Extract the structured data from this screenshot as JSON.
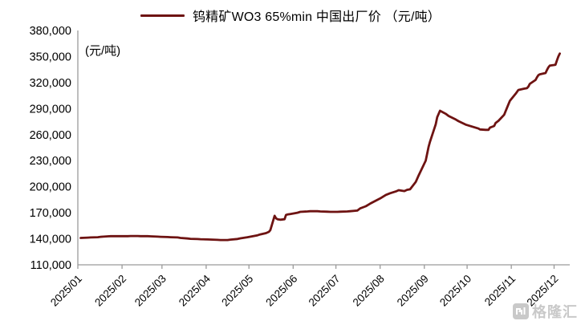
{
  "legend": {
    "label": "钨精矿WO3 65%min 中国出厂价 （元/吨）"
  },
  "unit_label": "(元/吨)",
  "watermark": {
    "text": "格隆汇"
  },
  "colors": {
    "line": "#6e1312",
    "axis": "#9a9a9a",
    "tick_text": "#000000",
    "watermark": "#c9c9c9"
  },
  "chart_data": {
    "type": "line",
    "title": "钨精矿WO3 65%min 中国出厂价 （元/吨）",
    "xlabel": "",
    "ylabel": "(元/吨)",
    "ylim": [
      110000,
      380000
    ],
    "ytick_step": 30000,
    "yticks": [
      110000,
      140000,
      170000,
      200000,
      230000,
      260000,
      290000,
      320000,
      350000,
      380000
    ],
    "xticks": [
      "2025/01",
      "2025/02",
      "2025/03",
      "2025/04",
      "2025/05",
      "2025/06",
      "2025/07",
      "2025/08",
      "2025/09",
      "2025/10",
      "2025/11",
      "2025/12"
    ],
    "grid": false,
    "legend_position": "top",
    "series": [
      {
        "name": "钨精矿WO3 65%min 中国出厂价",
        "unit": "元/吨",
        "points": [
          [
            "2025/01/03",
            141000
          ],
          [
            "2025/01/08",
            141300
          ],
          [
            "2025/01/10",
            141500
          ],
          [
            "2025/01/15",
            141800
          ],
          [
            "2025/01/17",
            142300
          ],
          [
            "2025/01/22",
            142800
          ],
          [
            "2025/01/24",
            143000
          ],
          [
            "2025/02/05",
            143000
          ],
          [
            "2025/02/07",
            143200
          ],
          [
            "2025/02/12",
            143200
          ],
          [
            "2025/02/14",
            143000
          ],
          [
            "2025/02/19",
            143000
          ],
          [
            "2025/02/21",
            142800
          ],
          [
            "2025/02/26",
            142500
          ],
          [
            "2025/02/28",
            142300
          ],
          [
            "2025/03/05",
            142000
          ],
          [
            "2025/03/07",
            141800
          ],
          [
            "2025/03/12",
            141500
          ],
          [
            "2025/03/14",
            141000
          ],
          [
            "2025/03/19",
            140300
          ],
          [
            "2025/03/21",
            140000
          ],
          [
            "2025/03/26",
            139700
          ],
          [
            "2025/03/28",
            139500
          ],
          [
            "2025/04/02",
            139200
          ],
          [
            "2025/04/09",
            138800
          ],
          [
            "2025/04/11",
            138600
          ],
          [
            "2025/04/16",
            138600
          ],
          [
            "2025/04/18",
            139000
          ],
          [
            "2025/04/23",
            139800
          ],
          [
            "2025/04/25",
            140500
          ],
          [
            "2025/04/30",
            141800
          ],
          [
            "2025/05/07",
            144000
          ],
          [
            "2025/05/09",
            145000
          ],
          [
            "2025/05/13",
            146500
          ],
          [
            "2025/05/15",
            148000
          ],
          [
            "2025/05/16",
            150000
          ],
          [
            "2025/05/19",
            166500
          ],
          [
            "2025/05/20",
            163500
          ],
          [
            "2025/05/21",
            162500
          ],
          [
            "2025/05/23",
            162000
          ],
          [
            "2025/05/26",
            162500
          ],
          [
            "2025/05/27",
            167500
          ],
          [
            "2025/05/28",
            168000
          ],
          [
            "2025/05/30",
            168500
          ],
          [
            "2025/06/04",
            170000
          ],
          [
            "2025/06/06",
            171000
          ],
          [
            "2025/06/11",
            171500
          ],
          [
            "2025/06/13",
            171800
          ],
          [
            "2025/06/18",
            171800
          ],
          [
            "2025/06/20",
            171500
          ],
          [
            "2025/06/25",
            171200
          ],
          [
            "2025/06/27",
            171000
          ],
          [
            "2025/07/02",
            171000
          ],
          [
            "2025/07/04",
            171200
          ],
          [
            "2025/07/09",
            171500
          ],
          [
            "2025/07/11",
            171800
          ],
          [
            "2025/07/16",
            172500
          ],
          [
            "2025/07/18",
            175000
          ],
          [
            "2025/07/22",
            177500
          ],
          [
            "2025/07/25",
            180500
          ],
          [
            "2025/07/29",
            184000
          ],
          [
            "2025/08/01",
            186500
          ],
          [
            "2025/08/05",
            190500
          ],
          [
            "2025/08/08",
            192500
          ],
          [
            "2025/08/12",
            194500
          ],
          [
            "2025/08/14",
            196000
          ],
          [
            "2025/08/18",
            195000
          ],
          [
            "2025/08/20",
            196500
          ],
          [
            "2025/08/22",
            197000
          ],
          [
            "2025/08/26",
            205500
          ],
          [
            "2025/08/28",
            213000
          ],
          [
            "2025/09/02",
            230000
          ],
          [
            "2025/09/04",
            246000
          ],
          [
            "2025/09/05",
            252000
          ],
          [
            "2025/09/09",
            272000
          ],
          [
            "2025/09/10",
            280000
          ],
          [
            "2025/09/12",
            287500
          ],
          [
            "2025/09/16",
            284000
          ],
          [
            "2025/09/18",
            281500
          ],
          [
            "2025/09/23",
            277500
          ],
          [
            "2025/09/25",
            275500
          ],
          [
            "2025/09/30",
            271500
          ],
          [
            "2025/10/09",
            267000
          ],
          [
            "2025/10/10",
            266000
          ],
          [
            "2025/10/14",
            265500
          ],
          [
            "2025/10/16",
            265500
          ],
          [
            "2025/10/17",
            268000
          ],
          [
            "2025/10/20",
            270000
          ],
          [
            "2025/10/21",
            273500
          ],
          [
            "2025/10/23",
            276000
          ],
          [
            "2025/10/27",
            283000
          ],
          [
            "2025/10/29",
            291000
          ],
          [
            "2025/10/31",
            299000
          ],
          [
            "2025/11/04",
            307000
          ],
          [
            "2025/11/06",
            311500
          ],
          [
            "2025/11/10",
            313000
          ],
          [
            "2025/11/12",
            313500
          ],
          [
            "2025/11/13",
            315500
          ],
          [
            "2025/11/14",
            318500
          ],
          [
            "2025/11/18",
            323000
          ],
          [
            "2025/11/19",
            326000
          ],
          [
            "2025/11/20",
            328500
          ],
          [
            "2025/11/21",
            329500
          ],
          [
            "2025/11/25",
            331000
          ],
          [
            "2025/11/26",
            334500
          ],
          [
            "2025/11/27",
            337500
          ],
          [
            "2025/11/28",
            339500
          ],
          [
            "2025/12/02",
            340500
          ],
          [
            "2025/12/03",
            345500
          ],
          [
            "2025/12/04",
            350000
          ],
          [
            "2025/12/05",
            353500
          ]
        ]
      }
    ]
  }
}
